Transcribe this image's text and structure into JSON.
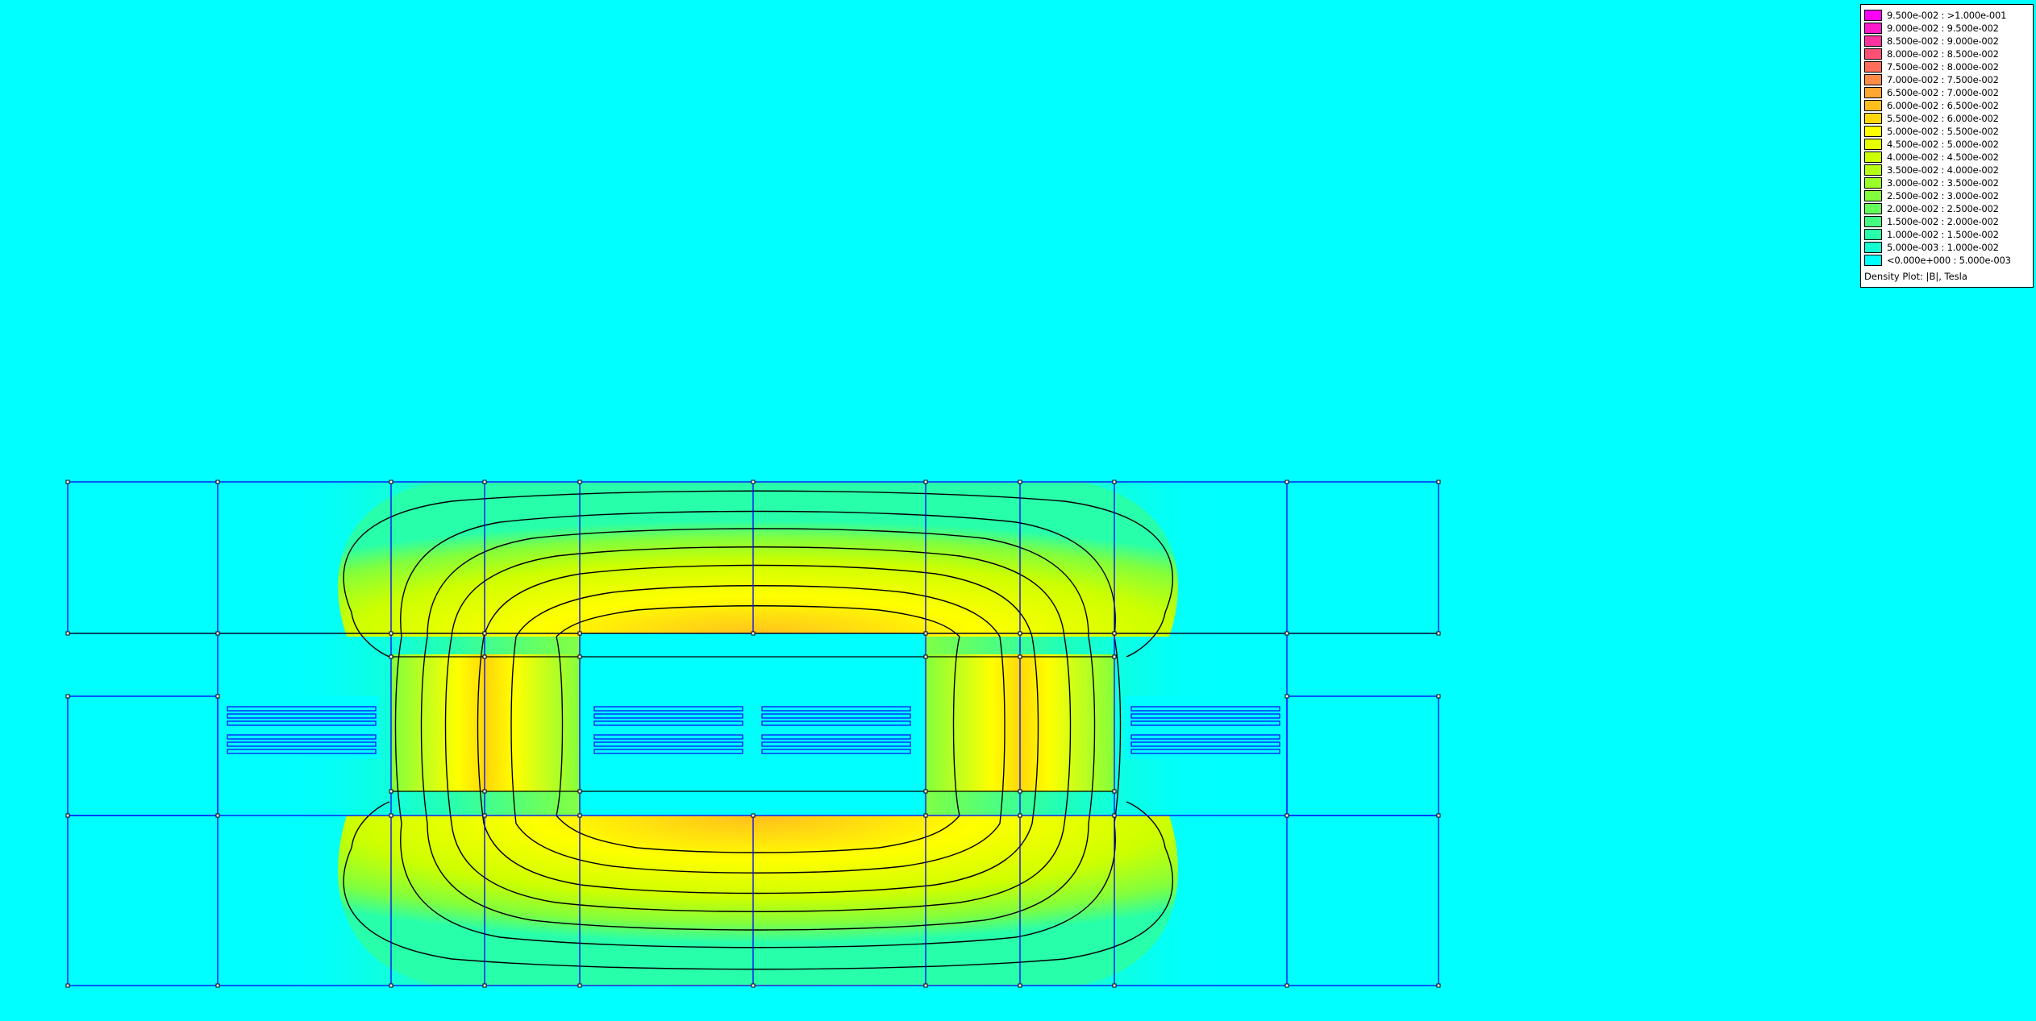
{
  "plot": {
    "background_color": "#00ffff",
    "geometry_line_color": "#0000ff",
    "contour_line_color": "#000000"
  },
  "legend": {
    "title": "Density Plot: |B|, Tesla",
    "entries": [
      {
        "label": "9.500e-002 : >1.000e-001",
        "color": "#ff00ff"
      },
      {
        "label": "9.000e-002 : 9.500e-002",
        "color": "#ff19cc"
      },
      {
        "label": "8.500e-002 : 9.000e-002",
        "color": "#ff33a0"
      },
      {
        "label": "8.000e-002 : 8.500e-002",
        "color": "#ff5078"
      },
      {
        "label": "7.500e-002 : 8.000e-002",
        "color": "#ff6e5a"
      },
      {
        "label": "7.000e-002 : 7.500e-002",
        "color": "#ff8c46"
      },
      {
        "label": "6.500e-002 : 7.000e-002",
        "color": "#ffa532"
      },
      {
        "label": "6.000e-002 : 6.500e-002",
        "color": "#ffbe1e"
      },
      {
        "label": "5.500e-002 : 6.000e-002",
        "color": "#ffd70a"
      },
      {
        "label": "5.000e-002 : 5.500e-002",
        "color": "#ffff00"
      },
      {
        "label": "4.500e-002 : 5.000e-002",
        "color": "#e6ff00"
      },
      {
        "label": "4.000e-002 : 4.500e-002",
        "color": "#cdff00"
      },
      {
        "label": "3.500e-002 : 4.000e-002",
        "color": "#b4ff14"
      },
      {
        "label": "3.000e-002 : 3.500e-002",
        "color": "#9bff28"
      },
      {
        "label": "2.500e-002 : 3.000e-002",
        "color": "#82ff3c"
      },
      {
        "label": "2.000e-002 : 2.500e-002",
        "color": "#64ff5a"
      },
      {
        "label": "1.500e-002 : 2.000e-002",
        "color": "#46ff82"
      },
      {
        "label": "1.000e-002 : 1.500e-002",
        "color": "#28ffaa"
      },
      {
        "label": "5.000e-003 : 1.000e-002",
        "color": "#14ffd2"
      },
      {
        "label": "<0.000e+000 : 5.000e-003",
        "color": "#00ffff"
      }
    ]
  }
}
